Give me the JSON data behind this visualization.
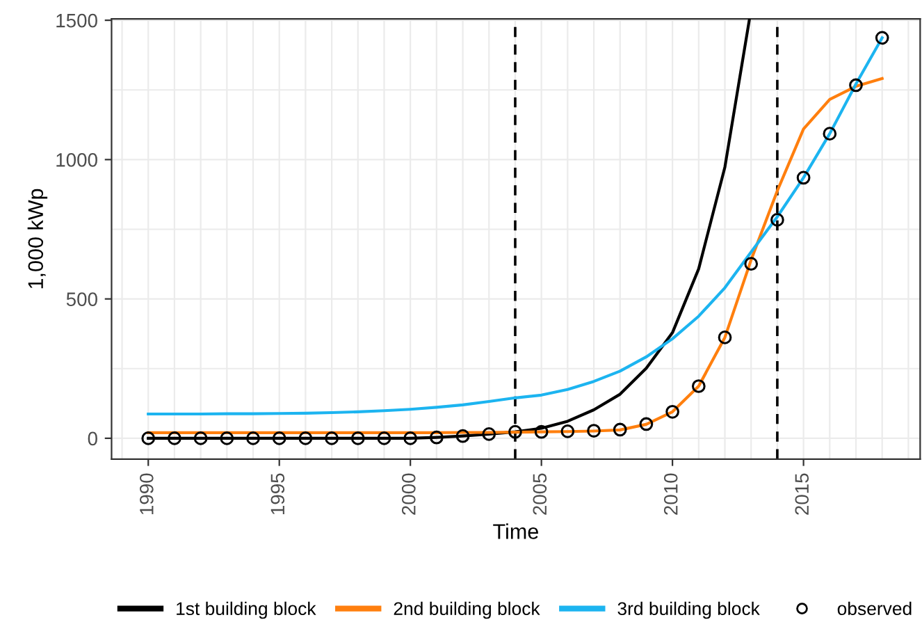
{
  "chart_data": {
    "type": "line",
    "xlabel": "Time",
    "ylabel": "1,000 kWp",
    "x": [
      1990,
      1991,
      1992,
      1993,
      1994,
      1995,
      1996,
      1997,
      1998,
      1999,
      2000,
      2001,
      2002,
      2003,
      2004,
      2005,
      2006,
      2007,
      2008,
      2009,
      2010,
      2011,
      2012,
      2013,
      2014,
      2015,
      2016,
      2017,
      2018
    ],
    "series": [
      {
        "name": "1st building block",
        "color": "#000000",
        "x": [
          1990,
          1991,
          1992,
          1993,
          1994,
          1995,
          1996,
          1997,
          1998,
          1999,
          2000,
          2001,
          2002,
          2003,
          2004,
          2005,
          2006,
          2007,
          2008,
          2009,
          2010,
          2011,
          2012,
          2012.93
        ],
        "values": [
          0,
          0,
          0,
          0,
          0,
          0,
          0,
          0,
          0,
          0,
          0,
          3,
          8,
          15,
          23,
          36,
          61,
          102,
          158,
          251,
          379,
          608,
          973,
          1500
        ]
      },
      {
        "name": "2nd building block",
        "color": "#ff7f0e",
        "values": [
          20,
          20,
          20,
          20,
          20,
          20,
          20,
          20,
          20,
          20,
          20,
          20,
          21,
          21,
          22,
          23,
          24,
          26,
          30,
          50,
          95,
          187,
          362,
          640,
          888,
          1110,
          1216,
          1263,
          1291
        ]
      },
      {
        "name": "3rd building block",
        "color": "#1cb4f0",
        "values": [
          87,
          87,
          87,
          88,
          88,
          89,
          90,
          92,
          95,
          99,
          104,
          111,
          120,
          132,
          145,
          155,
          175,
          204,
          241,
          292,
          357,
          438,
          540,
          668,
          795,
          935,
          1093,
          1271,
          1437
        ]
      },
      {
        "name": "observed",
        "type": "scatter",
        "marker": "circle",
        "color": "#000000",
        "values": [
          0,
          0,
          0,
          0,
          0,
          0,
          0,
          0,
          0,
          0,
          0,
          3,
          8,
          15,
          23,
          23,
          25,
          27,
          31,
          51,
          95,
          187,
          362,
          626,
          784,
          935,
          1093,
          1267,
          1437
        ]
      }
    ],
    "xlim": [
      1988.6,
      2019.45
    ],
    "ylim": [
      -75,
      1505
    ],
    "xticks": [
      1990,
      1995,
      2000,
      2005,
      2010,
      2015
    ],
    "yticks": [
      0,
      500,
      1000,
      1500
    ],
    "ref_lines": [
      {
        "axis": "x",
        "value": 2004,
        "line_style": "dashed",
        "color": "#000000"
      },
      {
        "axis": "x",
        "value": 2014,
        "line_style": "dashed",
        "color": "#000000"
      }
    ],
    "grid": true,
    "legend": "bottom"
  }
}
